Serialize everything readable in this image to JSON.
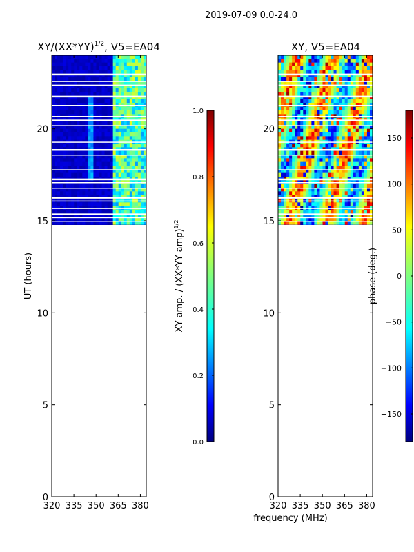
{
  "figure": {
    "suptitle": "2019-07-09 0.0-24.0",
    "xlabel": "frequency (MHz)"
  },
  "chart_data": [
    {
      "type": "heatmap",
      "title_main": "XY/(XX*YY)",
      "title_exp": "1/2",
      "title_suffix": ", V5=EA04",
      "ylabel": "UT (hours)",
      "xlim": [
        320,
        384
      ],
      "ylim": [
        0,
        24
      ],
      "xticks": [
        320,
        335,
        350,
        365,
        380
      ],
      "yticks": [
        0,
        5,
        10,
        15,
        20
      ],
      "data_time_range_hours": [
        14.8,
        24.0
      ],
      "value_description": "normalized XY amplitude; mostly ~0.05 below 362 MHz, ~0.3-0.6 in 362-384 MHz",
      "colorbar": {
        "label_main": "XY amp. / (XX*YY amp)",
        "label_exp": "1/2",
        "range": [
          0.0,
          1.0
        ],
        "ticks": [
          "0.0",
          "0.2",
          "0.4",
          "0.6",
          "0.8",
          "1.0"
        ],
        "colormap": "jet"
      }
    },
    {
      "type": "heatmap",
      "title_main": "XY, V5=EA04",
      "ylabel": "",
      "xlim": [
        320,
        384
      ],
      "ylim": [
        0,
        24
      ],
      "xticks": [
        320,
        335,
        350,
        365,
        380
      ],
      "yticks": [
        0,
        5,
        10,
        15,
        20
      ],
      "data_time_range_hours": [
        14.8,
        24.0
      ],
      "value_description": "XY phase in degrees, varying across full range",
      "colorbar": {
        "label_main": "phase (deg.)",
        "range": [
          -180,
          180
        ],
        "ticks": [
          "−150",
          "−100",
          "−50",
          "0",
          "50",
          "100",
          "150"
        ],
        "colormap": "jet"
      }
    }
  ],
  "colors": {
    "jet": [
      "#00007f",
      "#0000ff",
      "#007fff",
      "#00ffff",
      "#7fff7f",
      "#ffff00",
      "#ff7f00",
      "#ff0000",
      "#7f0000"
    ],
    "background": "#ffffff",
    "axis": "#000000"
  }
}
